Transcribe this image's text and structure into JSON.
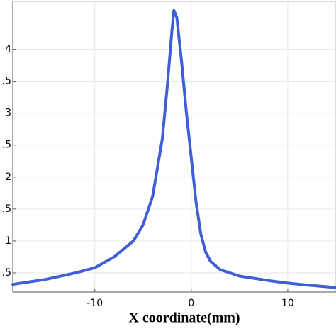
{
  "chart_data": {
    "type": "line",
    "x_label": "X coordinate(mm)",
    "x": [
      -18.5,
      -15,
      -12,
      -10,
      -8,
      -6,
      -5,
      -4,
      -3,
      -2.5,
      -2,
      -1.8,
      -1.5,
      -1,
      -0.5,
      0,
      0.5,
      1,
      1.5,
      2,
      3,
      5,
      8,
      10,
      12,
      15
    ],
    "series": [
      {
        "color": "#3f5fd8",
        "values": [
          0.32,
          0.4,
          0.5,
          0.58,
          0.75,
          1.0,
          1.25,
          1.7,
          2.6,
          3.4,
          4.3,
          4.61,
          4.5,
          3.8,
          3.0,
          2.3,
          1.6,
          1.1,
          0.82,
          0.68,
          0.55,
          0.45,
          0.38,
          0.34,
          0.31,
          0.27
        ]
      }
    ],
    "xlim": [
      -18.5,
      15
    ],
    "ylim": [
      0.2,
      4.75
    ],
    "xticks": [
      -10,
      0,
      10
    ],
    "yticks": [
      {
        "value": 0.5,
        "label": ".5"
      },
      1,
      {
        "value": 1.5,
        "label": ".5"
      },
      2,
      {
        "value": 2.5,
        "label": ".5"
      },
      3,
      {
        "value": 3.5,
        "label": ".5"
      },
      4
    ],
    "grid": true
  }
}
